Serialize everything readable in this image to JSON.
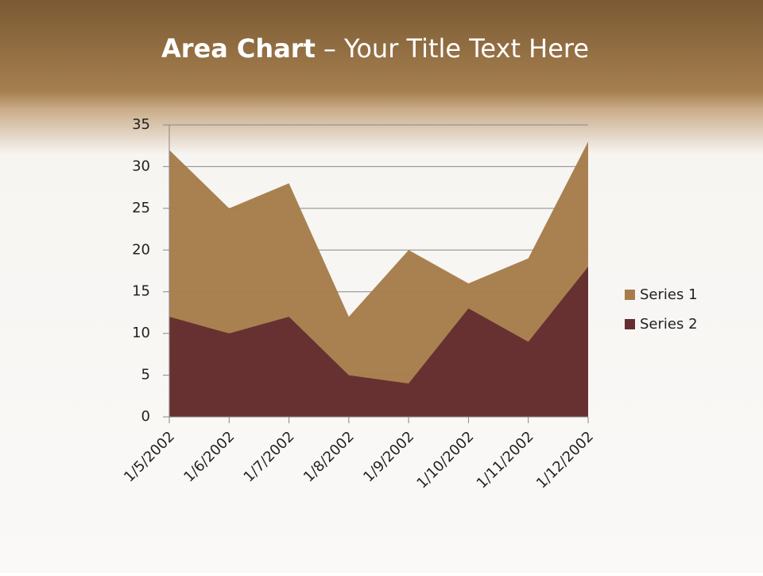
{
  "chart_data": {
    "type": "area",
    "title": [
      "Area Chart",
      "– Your Title Text Here"
    ],
    "categories": [
      "1/5/2002",
      "1/6/2002",
      "1/7/2002",
      "1/8/2002",
      "1/9/2002",
      "1/10/2002",
      "1/11/2002",
      "1/12/2002"
    ],
    "series": [
      {
        "name": "Series 1",
        "color": "#a67d4a",
        "values": [
          32,
          25,
          28,
          12,
          20,
          16,
          19,
          33
        ]
      },
      {
        "name": "Series 2",
        "color": "#652e31",
        "values": [
          12,
          10,
          12,
          5,
          4,
          13,
          9,
          18
        ]
      }
    ],
    "ylim": [
      0,
      35
    ],
    "yticks": [
      0,
      5,
      10,
      15,
      20,
      25,
      30,
      35
    ],
    "grid": true,
    "legend": "right"
  }
}
